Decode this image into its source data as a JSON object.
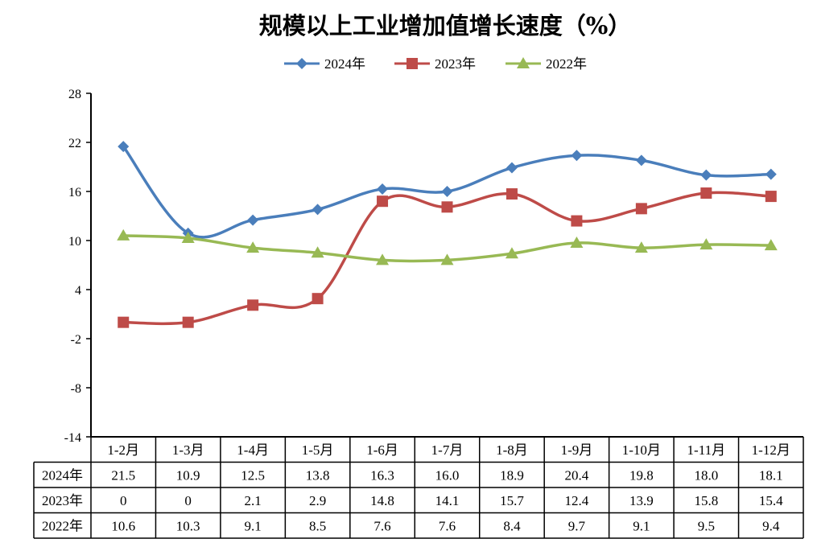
{
  "chart_data": {
    "type": "line",
    "title": "规模以上工业增加值增长速度（%）",
    "categories": [
      "1-2月",
      "1-3月",
      "1-4月",
      "1-5月",
      "1-6月",
      "1-7月",
      "1-8月",
      "1-9月",
      "1-10月",
      "1-11月",
      "1-12月"
    ],
    "ylim": [
      -14,
      28
    ],
    "yticks": [
      28,
      22,
      16,
      10,
      4,
      -2,
      -8,
      -14
    ],
    "ytick_labels": [
      "28",
      "22",
      "16",
      "10",
      "4",
      "-2",
      "-8",
      "-14"
    ],
    "legend_placement": "top-center",
    "grid": false,
    "data_table": true,
    "series": [
      {
        "name": "2024年",
        "color": "#4a7ebb",
        "marker": "diamond",
        "values": [
          21.5,
          10.9,
          12.5,
          13.8,
          16.3,
          16.0,
          18.9,
          20.4,
          19.8,
          18.0,
          18.1
        ],
        "labels": [
          "21.5",
          "10.9",
          "12.5",
          "13.8",
          "16.3",
          "16.0",
          "18.9",
          "20.4",
          "19.8",
          "18.0",
          "18.1"
        ]
      },
      {
        "name": "2023年",
        "color": "#be4b48",
        "marker": "square",
        "values": [
          0,
          0,
          2.1,
          2.9,
          14.8,
          14.1,
          15.7,
          12.4,
          13.9,
          15.8,
          15.4
        ],
        "labels": [
          "0",
          "0",
          "2.1",
          "2.9",
          "14.8",
          "14.1",
          "15.7",
          "12.4",
          "13.9",
          "15.8",
          "15.4"
        ]
      },
      {
        "name": "2022年",
        "color": "#98b954",
        "marker": "triangle",
        "values": [
          10.6,
          10.3,
          9.1,
          8.5,
          7.6,
          7.6,
          8.4,
          9.7,
          9.1,
          9.5,
          9.4
        ],
        "labels": [
          "10.6",
          "10.3",
          "9.1",
          "8.5",
          "7.6",
          "7.6",
          "8.4",
          "9.7",
          "9.1",
          "9.5",
          "9.4"
        ]
      }
    ]
  }
}
